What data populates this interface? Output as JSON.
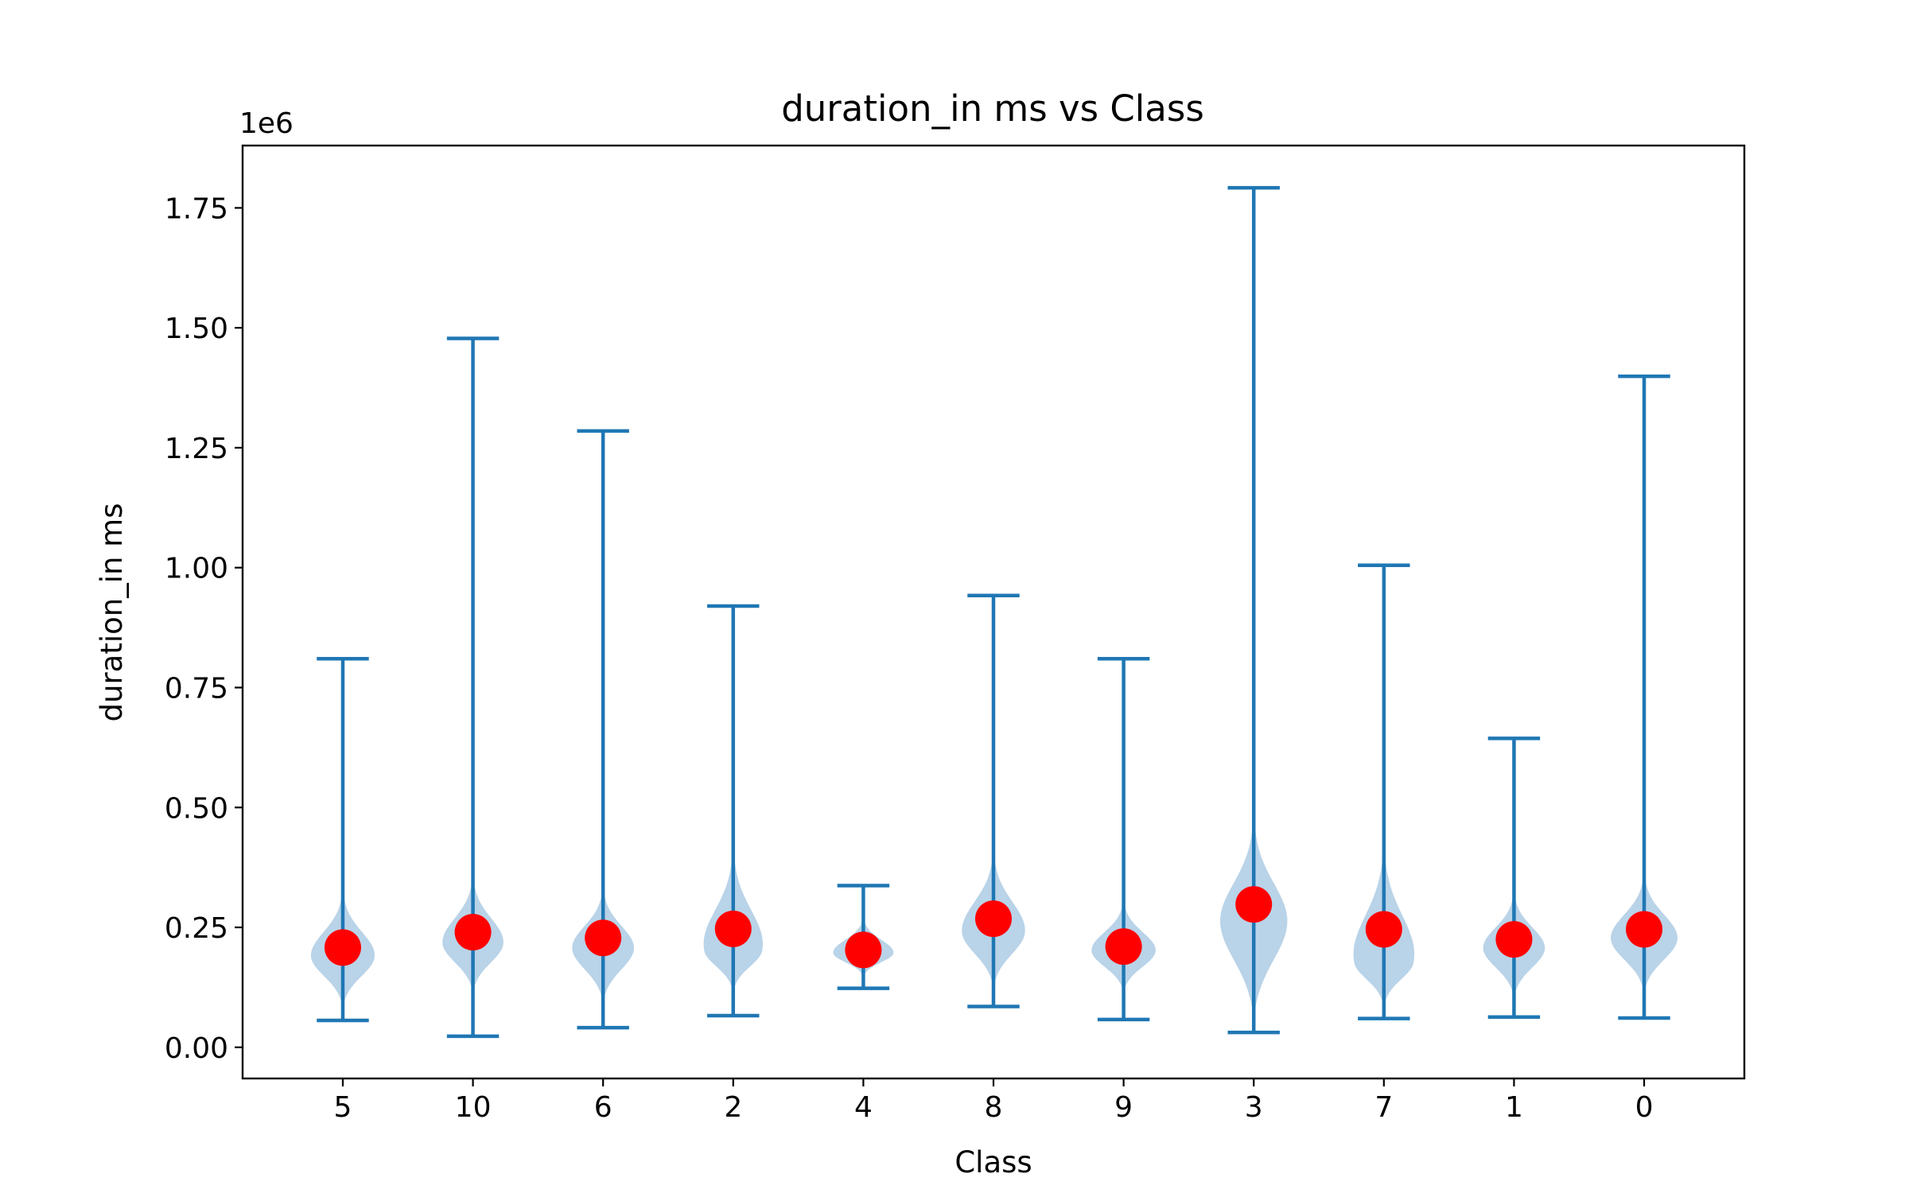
{
  "chart_data": {
    "type": "violin",
    "title": "duration_in ms vs Class",
    "xlabel": "Class",
    "ylabel": "duration_in ms",
    "y_offset_label": "1e6",
    "y_multiplier": 1000000,
    "categories": [
      "5",
      "10",
      "6",
      "2",
      "4",
      "8",
      "9",
      "3",
      "7",
      "1",
      "0"
    ],
    "ylim": [
      -0.065,
      1.88
    ],
    "yticks": [
      0.0,
      0.25,
      0.5,
      0.75,
      1.0,
      1.25,
      1.5,
      1.75
    ],
    "ytick_labels": [
      "0.00",
      "0.25",
      "0.50",
      "0.75",
      "1.00",
      "1.25",
      "1.50",
      "1.75"
    ],
    "series": [
      {
        "mark": "violin",
        "min": [
          0.056,
          0.023,
          0.041,
          0.066,
          0.123,
          0.085,
          0.058,
          0.031,
          0.06,
          0.063,
          0.061
        ],
        "max": [
          0.81,
          1.478,
          1.285,
          0.92,
          0.337,
          0.942,
          0.81,
          1.792,
          1.005,
          0.644,
          1.399
        ],
        "mode": [
          0.188,
          0.215,
          0.205,
          0.2,
          0.195,
          0.238,
          0.2,
          0.26,
          0.175,
          0.205,
          0.225
        ],
        "density_top": [
          0.345,
          0.375,
          0.35,
          0.44,
          0.28,
          0.43,
          0.32,
          0.51,
          0.45,
          0.34,
          0.38
        ],
        "density_bottom": [
          0.09,
          0.12,
          0.1,
          0.12,
          0.15,
          0.13,
          0.12,
          0.07,
          0.09,
          0.11,
          0.12
        ],
        "half_width": [
          0.25,
          0.24,
          0.24,
          0.25,
          0.24,
          0.25,
          0.25,
          0.26,
          0.26,
          0.24,
          0.26
        ]
      },
      {
        "mark": "mean-point",
        "values": [
          0.208,
          0.24,
          0.228,
          0.247,
          0.203,
          0.268,
          0.21,
          0.298,
          0.246,
          0.225,
          0.246
        ]
      }
    ],
    "colors": {
      "line": "#1f77b4",
      "violin_fill": "#b9d3e8",
      "mean_point": "#ff0000",
      "axes": "#000000"
    },
    "grid": false,
    "legend": "none"
  }
}
